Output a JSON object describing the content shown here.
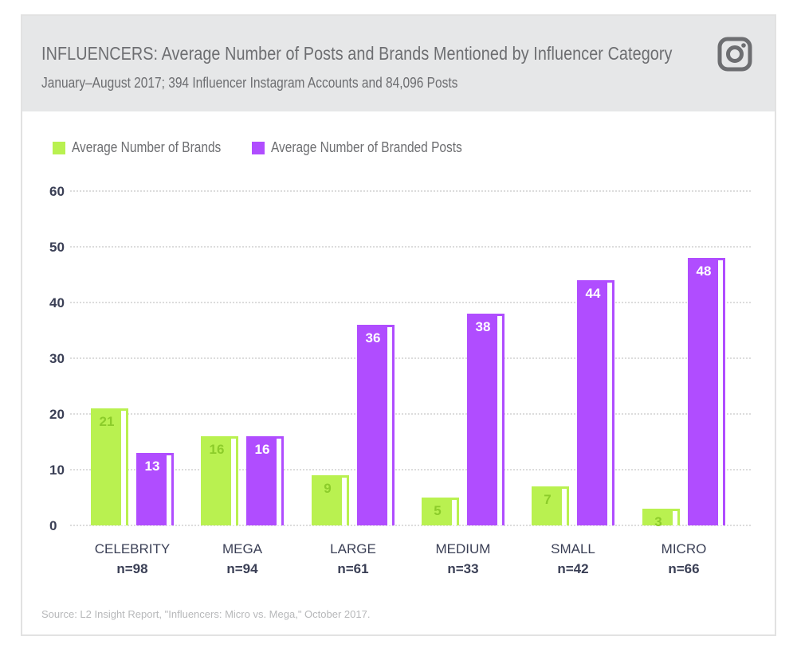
{
  "header": {
    "title": "INFLUENCERS: Average Number of Posts and Brands Mentioned by Influencer Category",
    "subtitle": "January–August 2017; 394 Influencer Instagram Accounts and 84,096 Posts",
    "icon": "instagram-icon"
  },
  "source": "Source: L2 Insight Report, \"Influencers: Micro vs. Mega,\" October 2017.",
  "colors": {
    "brands": "#b9f150",
    "posts": "#b04dff",
    "brands_label": "#8ccc2a",
    "posts_label": "#ffffff",
    "axis_text": "#3a3f55",
    "header_bg": "#e6e7e8"
  },
  "chart_data": {
    "type": "bar",
    "categories": [
      "CELEBRITY",
      "MEGA",
      "LARGE",
      "MEDIUM",
      "SMALL",
      "MICRO"
    ],
    "sample_sizes": [
      "n=98",
      "n=94",
      "n=61",
      "n=33",
      "n=42",
      "n=66"
    ],
    "series": [
      {
        "name": "Average Number of Brands",
        "values": [
          21,
          16,
          9,
          5,
          7,
          3
        ],
        "color": "#b9f150"
      },
      {
        "name": "Average Number of Branded Posts",
        "values": [
          13,
          16,
          36,
          38,
          44,
          48
        ],
        "color": "#b04dff"
      }
    ],
    "ylim": [
      0,
      60
    ],
    "yticks": [
      0,
      10,
      20,
      30,
      40,
      50,
      60
    ],
    "grid": true,
    "legend_position": "top-left"
  }
}
